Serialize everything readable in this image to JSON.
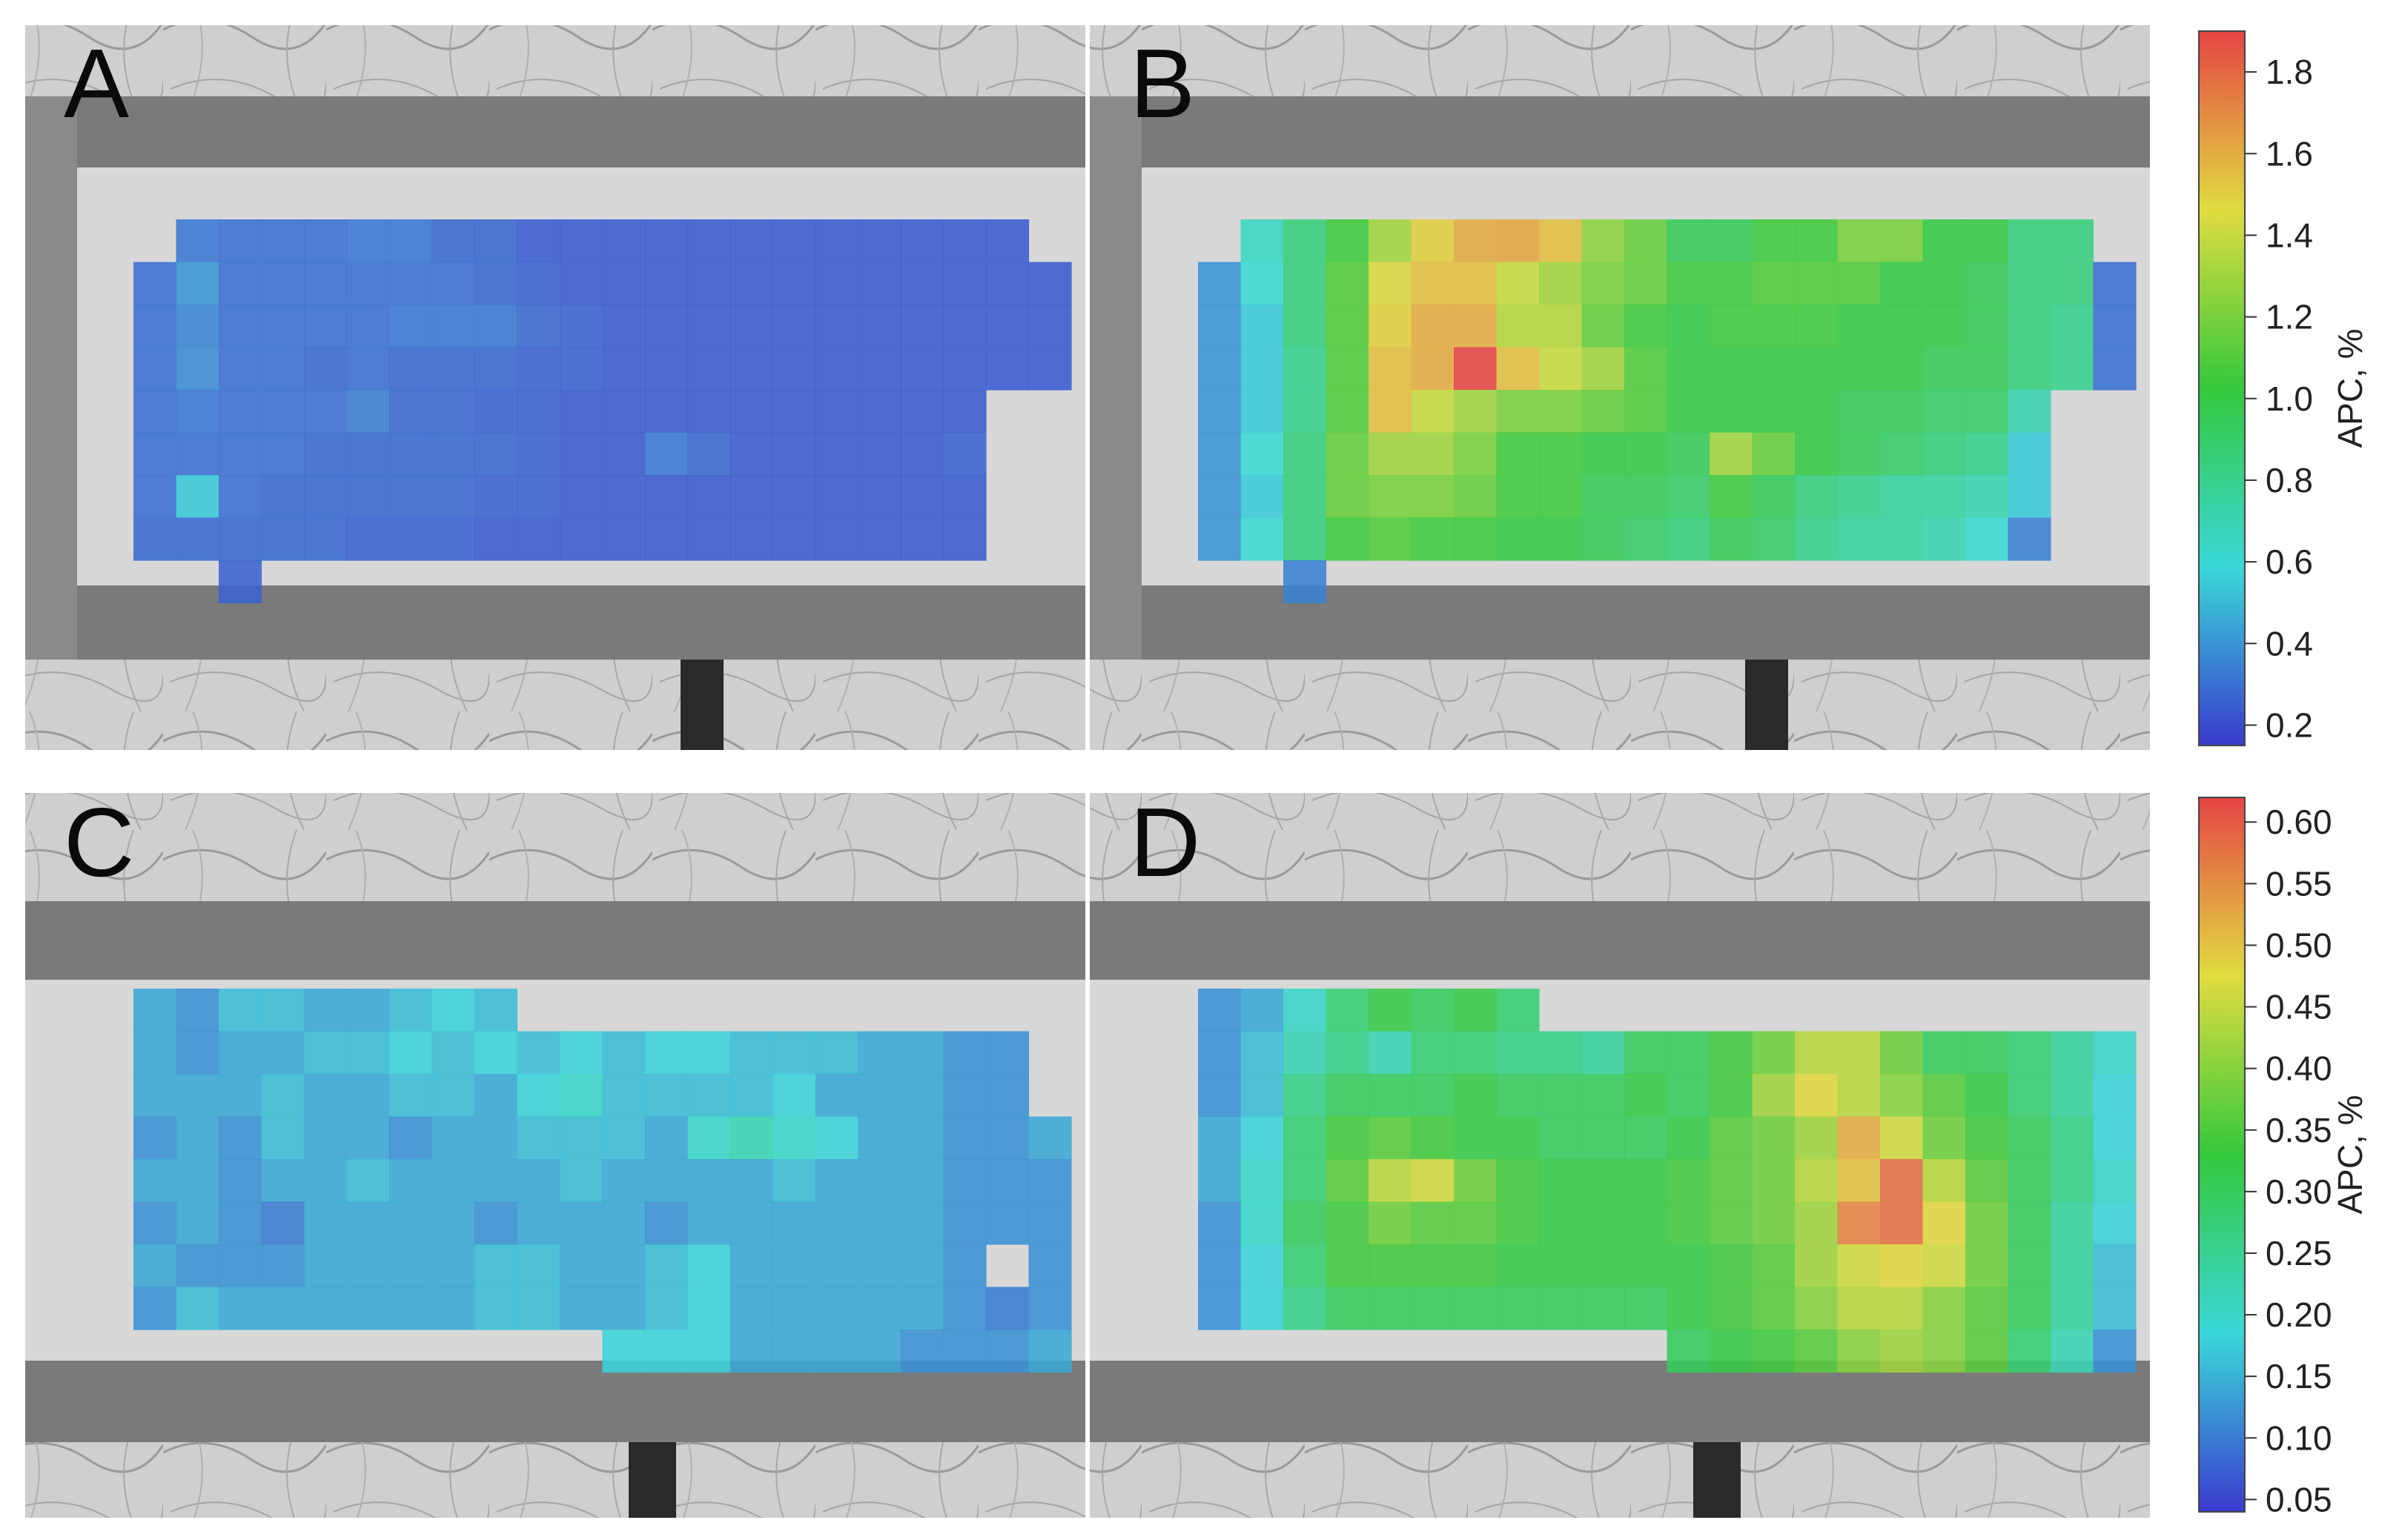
{
  "figure": {
    "panels": [
      {
        "letter": "A"
      },
      {
        "letter": "B"
      },
      {
        "letter": "C"
      },
      {
        "letter": "D"
      }
    ],
    "colorbars": [
      {
        "label": "APC, %",
        "ticks": [
          "0.2",
          "0.4",
          "0.6",
          "0.8",
          "1.0",
          "1.2",
          "1.4",
          "1.6",
          "1.8"
        ],
        "range": [
          0.15,
          1.9
        ]
      },
      {
        "label": "APC, %",
        "ticks": [
          "0.05",
          "0.10",
          "0.15",
          "0.20",
          "0.25",
          "0.30",
          "0.35",
          "0.40",
          "0.45",
          "0.50",
          "0.55",
          "0.60"
        ],
        "range": [
          0.04,
          0.62
        ]
      }
    ]
  },
  "colors": {
    "jet_low": "#3a3acd",
    "jet_mid_low": "#3ad8d8",
    "jet_mid": "#35c83d",
    "jet_mid_high": "#e0dc40",
    "jet_high": "#e54545",
    "skin_background": "#cfcfcf",
    "frame": "#7a7a7a"
  },
  "chart_data": [
    {
      "type": "heatmap",
      "panel": "A",
      "colorbar": 0,
      "rows": 8,
      "cols": 22,
      "col_offset": 1,
      "values": [
        [
          null,
          0.32,
          0.3,
          0.3,
          0.3,
          0.32,
          0.32,
          0.28,
          0.28,
          0.24,
          0.24,
          0.24,
          0.24,
          0.24,
          0.24,
          0.24,
          0.24,
          0.24,
          0.24,
          0.24,
          0.24,
          null
        ],
        [
          0.3,
          0.4,
          0.3,
          0.3,
          0.3,
          0.3,
          0.3,
          0.3,
          0.28,
          0.26,
          0.24,
          0.24,
          0.24,
          0.24,
          0.24,
          0.24,
          0.24,
          0.24,
          0.24,
          0.24,
          0.24,
          0.24
        ],
        [
          0.3,
          0.36,
          0.3,
          0.3,
          0.3,
          0.3,
          0.32,
          0.32,
          0.32,
          0.28,
          0.26,
          0.24,
          0.24,
          0.24,
          0.24,
          0.24,
          0.24,
          0.24,
          0.24,
          0.24,
          0.24,
          0.24
        ],
        [
          0.3,
          0.38,
          0.3,
          0.3,
          0.28,
          0.3,
          0.28,
          0.28,
          0.28,
          0.26,
          0.26,
          0.24,
          0.24,
          0.24,
          0.24,
          0.24,
          0.24,
          0.24,
          0.24,
          0.24,
          0.24,
          0.24
        ],
        [
          0.3,
          0.32,
          0.3,
          0.3,
          0.3,
          0.34,
          0.28,
          0.28,
          0.26,
          0.26,
          0.24,
          0.24,
          0.24,
          0.24,
          0.24,
          0.24,
          0.24,
          0.24,
          0.24,
          0.24,
          null,
          null
        ],
        [
          0.3,
          0.3,
          0.3,
          0.3,
          0.28,
          0.28,
          0.28,
          0.28,
          0.28,
          0.26,
          0.24,
          0.24,
          0.32,
          0.28,
          0.24,
          0.24,
          0.24,
          0.24,
          0.24,
          0.26,
          null,
          null
        ],
        [
          0.3,
          0.54,
          0.3,
          0.28,
          0.28,
          0.28,
          0.28,
          0.28,
          0.26,
          0.26,
          0.24,
          0.24,
          0.24,
          0.24,
          0.24,
          0.24,
          0.24,
          0.24,
          0.24,
          0.24,
          null,
          null
        ],
        [
          0.28,
          0.28,
          0.28,
          0.28,
          0.28,
          0.26,
          0.26,
          0.26,
          0.24,
          0.24,
          0.24,
          0.24,
          0.24,
          0.24,
          0.24,
          0.24,
          0.24,
          0.24,
          0.24,
          0.24,
          null,
          null
        ]
      ],
      "extra_cells": [
        {
          "row": 8,
          "col": 2,
          "value": 0.26
        }
      ]
    },
    {
      "type": "heatmap",
      "panel": "B",
      "colorbar": 0,
      "rows": 8,
      "cols": 22,
      "col_offset": 1,
      "values": [
        [
          null,
          0.65,
          0.85,
          1.05,
          1.3,
          1.5,
          1.6,
          1.62,
          1.55,
          1.25,
          1.15,
          0.95,
          0.95,
          1.05,
          1.05,
          1.2,
          1.2,
          1.0,
          1.0,
          0.85,
          0.85,
          null
        ],
        [
          0.4,
          0.6,
          0.85,
          1.1,
          1.45,
          1.55,
          1.55,
          1.4,
          1.3,
          1.2,
          1.15,
          1.05,
          1.05,
          1.1,
          1.1,
          1.1,
          1.0,
          1.0,
          0.95,
          0.85,
          0.85,
          0.3
        ],
        [
          0.4,
          0.55,
          0.85,
          1.1,
          1.5,
          1.6,
          1.6,
          1.35,
          1.35,
          1.15,
          1.05,
          1.0,
          1.05,
          1.05,
          1.05,
          1.0,
          1.0,
          1.0,
          0.95,
          0.85,
          0.8,
          0.3
        ],
        [
          0.4,
          0.55,
          0.8,
          1.1,
          1.55,
          1.6,
          1.9,
          1.55,
          1.4,
          1.3,
          1.1,
          1.0,
          1.0,
          1.0,
          1.0,
          1.0,
          1.0,
          0.95,
          0.95,
          0.85,
          0.8,
          0.3
        ],
        [
          0.4,
          0.55,
          0.8,
          1.1,
          1.55,
          1.4,
          1.3,
          1.2,
          1.2,
          1.15,
          1.1,
          1.0,
          1.0,
          1.0,
          1.0,
          0.95,
          0.95,
          0.9,
          0.9,
          0.7,
          null,
          null
        ],
        [
          0.4,
          0.6,
          0.85,
          1.15,
          1.3,
          1.3,
          1.2,
          1.05,
          1.05,
          1.0,
          1.0,
          0.95,
          1.3,
          1.15,
          1.0,
          0.95,
          0.9,
          0.85,
          0.8,
          0.55,
          null,
          null
        ],
        [
          0.4,
          0.55,
          0.85,
          1.15,
          1.2,
          1.2,
          1.15,
          1.05,
          1.05,
          0.95,
          0.95,
          0.9,
          1.05,
          0.95,
          0.85,
          0.8,
          0.75,
          0.75,
          0.7,
          0.55,
          null,
          null
        ],
        [
          0.4,
          0.6,
          0.85,
          1.05,
          1.1,
          1.05,
          1.05,
          1.0,
          1.0,
          0.95,
          0.9,
          0.85,
          0.95,
          0.9,
          0.8,
          0.75,
          0.75,
          0.7,
          0.6,
          0.35,
          null,
          null
        ]
      ],
      "extra_cells": [
        {
          "row": 8,
          "col": 2,
          "value": 0.35
        }
      ]
    },
    {
      "type": "heatmap",
      "panel": "C",
      "colorbar": 1,
      "rows": 9,
      "cols": 22,
      "col_offset": 1,
      "values": [
        [
          0.14,
          0.12,
          0.16,
          0.16,
          0.14,
          0.14,
          0.16,
          0.18,
          0.16,
          null,
          null,
          null,
          null,
          null,
          null,
          null,
          null,
          null,
          null,
          null,
          null,
          null
        ],
        [
          0.14,
          0.12,
          0.14,
          0.14,
          0.16,
          0.16,
          0.18,
          0.16,
          0.18,
          0.16,
          0.18,
          0.16,
          0.18,
          0.18,
          0.16,
          0.16,
          0.16,
          0.14,
          0.14,
          0.12,
          0.12,
          null
        ],
        [
          0.14,
          0.14,
          0.14,
          0.16,
          0.14,
          0.14,
          0.16,
          0.16,
          0.14,
          0.18,
          0.2,
          0.16,
          0.16,
          0.16,
          0.16,
          0.18,
          0.14,
          0.14,
          0.14,
          0.12,
          0.12,
          null
        ],
        [
          0.12,
          0.14,
          0.12,
          0.16,
          0.14,
          0.14,
          0.12,
          0.14,
          0.14,
          0.16,
          0.16,
          0.16,
          0.14,
          0.2,
          0.22,
          0.2,
          0.18,
          0.14,
          0.14,
          0.12,
          0.12,
          0.14
        ],
        [
          0.14,
          0.14,
          0.12,
          0.14,
          0.14,
          0.16,
          0.14,
          0.14,
          0.14,
          0.14,
          0.16,
          0.14,
          0.14,
          0.14,
          0.14,
          0.16,
          0.14,
          0.14,
          0.14,
          0.12,
          0.12,
          0.12
        ],
        [
          0.12,
          0.14,
          0.12,
          0.1,
          0.14,
          0.14,
          0.14,
          0.14,
          0.12,
          0.14,
          0.14,
          0.14,
          0.12,
          0.14,
          0.14,
          0.14,
          0.14,
          0.14,
          0.14,
          0.12,
          0.12,
          0.12
        ],
        [
          0.14,
          0.12,
          0.12,
          0.12,
          0.14,
          0.14,
          0.14,
          0.14,
          0.16,
          0.16,
          0.14,
          0.14,
          0.16,
          0.18,
          0.14,
          0.14,
          0.14,
          0.14,
          0.14,
          0.12,
          null,
          0.12
        ],
        [
          0.12,
          0.16,
          0.14,
          0.14,
          0.14,
          0.14,
          0.14,
          0.14,
          0.16,
          0.16,
          0.14,
          0.14,
          0.16,
          0.18,
          0.14,
          0.14,
          0.14,
          0.14,
          0.14,
          0.12,
          0.1,
          0.12
        ],
        [
          null,
          null,
          null,
          null,
          null,
          null,
          null,
          null,
          null,
          null,
          null,
          0.18,
          0.18,
          0.18,
          0.14,
          0.14,
          0.14,
          0.14,
          0.12,
          0.12,
          0.12,
          0.14
        ]
      ],
      "extra_cells": []
    },
    {
      "type": "heatmap",
      "panel": "D",
      "colorbar": 1,
      "rows": 9,
      "cols": 22,
      "col_offset": 1,
      "values": [
        [
          0.12,
          0.14,
          0.2,
          0.28,
          0.32,
          0.3,
          0.32,
          0.28,
          null,
          null,
          null,
          null,
          null,
          null,
          null,
          null,
          null,
          null,
          null,
          null,
          null,
          null
        ],
        [
          0.12,
          0.16,
          0.22,
          0.26,
          0.22,
          0.28,
          0.28,
          0.26,
          0.26,
          0.24,
          0.3,
          0.3,
          0.34,
          0.38,
          0.44,
          0.44,
          0.38,
          0.3,
          0.3,
          0.28,
          0.24,
          0.2
        ],
        [
          0.12,
          0.16,
          0.26,
          0.3,
          0.3,
          0.3,
          0.32,
          0.3,
          0.3,
          0.3,
          0.32,
          0.3,
          0.34,
          0.42,
          0.48,
          0.44,
          0.4,
          0.36,
          0.32,
          0.28,
          0.24,
          0.18
        ],
        [
          0.14,
          0.18,
          0.28,
          0.34,
          0.36,
          0.34,
          0.32,
          0.32,
          0.3,
          0.3,
          0.3,
          0.32,
          0.36,
          0.38,
          0.42,
          0.52,
          0.46,
          0.38,
          0.34,
          0.3,
          0.26,
          0.18
        ],
        [
          0.14,
          0.2,
          0.28,
          0.36,
          0.44,
          0.46,
          0.38,
          0.34,
          0.32,
          0.32,
          0.32,
          0.34,
          0.36,
          0.38,
          0.44,
          0.5,
          0.58,
          0.44,
          0.36,
          0.3,
          0.26,
          0.2
        ],
        [
          0.12,
          0.2,
          0.3,
          0.34,
          0.38,
          0.36,
          0.36,
          0.34,
          0.32,
          0.32,
          0.32,
          0.34,
          0.36,
          0.38,
          0.42,
          0.56,
          0.58,
          0.48,
          0.38,
          0.3,
          0.24,
          0.18
        ],
        [
          0.12,
          0.18,
          0.28,
          0.34,
          0.34,
          0.34,
          0.34,
          0.32,
          0.32,
          0.32,
          0.32,
          0.32,
          0.34,
          0.36,
          0.42,
          0.46,
          0.48,
          0.46,
          0.38,
          0.3,
          0.24,
          0.16
        ],
        [
          0.12,
          0.18,
          0.26,
          0.3,
          0.3,
          0.3,
          0.3,
          0.3,
          0.3,
          0.3,
          0.3,
          0.32,
          0.34,
          0.36,
          0.4,
          0.44,
          0.44,
          0.4,
          0.36,
          0.3,
          0.24,
          0.16
        ],
        [
          null,
          null,
          null,
          null,
          null,
          null,
          null,
          null,
          null,
          null,
          null,
          0.3,
          0.32,
          0.34,
          0.36,
          0.4,
          0.42,
          0.4,
          0.36,
          0.28,
          0.22,
          0.12
        ]
      ],
      "extra_cells": []
    }
  ]
}
